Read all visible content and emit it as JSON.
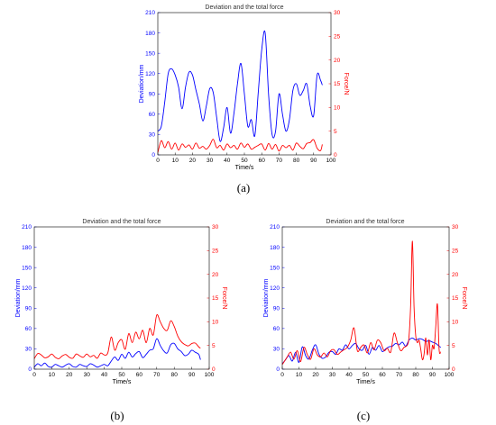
{
  "chart_data": [
    {
      "type": "line",
      "caption": "(a)",
      "title": "Deviation and the total force",
      "xlabel": "Time/s",
      "ylabel_left": "Deviation/mm",
      "ylabel_right": "Force/N",
      "xlim": [
        0,
        100
      ],
      "ylim_left": [
        0,
        210
      ],
      "ylim_right": [
        0,
        30
      ],
      "xticks": [
        0,
        10,
        20,
        30,
        40,
        50,
        60,
        70,
        80,
        90,
        100
      ],
      "yticks_left": [
        0,
        30,
        60,
        90,
        120,
        150,
        180,
        210
      ],
      "yticks_right": [
        0,
        5,
        10,
        15,
        20,
        25,
        30
      ],
      "colors": {
        "left": "#0000ff",
        "right": "#ff0000"
      },
      "series": [
        {
          "axis": "left",
          "x": [
            0,
            2,
            4,
            6,
            8,
            10,
            12,
            14,
            16,
            18,
            20,
            22,
            24,
            26,
            28,
            30,
            32,
            34,
            36,
            38,
            40,
            42,
            44,
            46,
            48,
            50,
            52,
            54,
            56,
            58,
            60,
            62,
            64,
            66,
            68,
            70,
            72,
            74,
            76,
            78,
            80,
            82,
            84,
            86,
            88,
            90,
            92,
            94,
            95
          ],
          "values": [
            35,
            42,
            78,
            120,
            127,
            118,
            100,
            68,
            100,
            122,
            118,
            96,
            75,
            50,
            72,
            98,
            92,
            55,
            20,
            40,
            70,
            32,
            62,
            105,
            135,
            90,
            42,
            52,
            28,
            92,
            155,
            180,
            88,
            30,
            35,
            90,
            60,
            35,
            52,
            95,
            105,
            88,
            95,
            105,
            72,
            58,
            118,
            110,
            103
          ]
        },
        {
          "axis": "right",
          "x": [
            0,
            2,
            4,
            6,
            8,
            10,
            12,
            14,
            16,
            18,
            20,
            22,
            24,
            26,
            28,
            30,
            32,
            34,
            36,
            38,
            40,
            42,
            44,
            46,
            48,
            50,
            52,
            54,
            56,
            58,
            60,
            62,
            64,
            66,
            68,
            70,
            72,
            74,
            76,
            78,
            80,
            82,
            84,
            86,
            88,
            90,
            92,
            94,
            95
          ],
          "values": [
            0.5,
            3.0,
            1.5,
            2.8,
            1.2,
            2.5,
            1.0,
            2.3,
            1.6,
            2.1,
            1.2,
            2.5,
            1.4,
            1.8,
            1.2,
            2.0,
            3.3,
            1.5,
            2.0,
            1.0,
            2.3,
            1.5,
            2.0,
            1.2,
            2.5,
            1.6,
            2.3,
            1.2,
            1.6,
            2.0,
            2.3,
            1.0,
            2.4,
            1.2,
            2.2,
            0.8,
            2.0,
            1.5,
            2.0,
            1.0,
            2.5,
            1.8,
            1.3,
            2.4,
            2.6,
            3.2,
            1.4,
            0.9,
            2.2
          ]
        }
      ]
    },
    {
      "type": "line",
      "caption": "(b)",
      "title": "Deviation and the total force",
      "xlabel": "Time/s",
      "ylabel_left": "Deviation/mm",
      "ylabel_right": "Force/N",
      "xlim": [
        0,
        100
      ],
      "ylim_left": [
        0,
        210
      ],
      "ylim_right": [
        0,
        30
      ],
      "xticks": [
        0,
        10,
        20,
        30,
        40,
        50,
        60,
        70,
        80,
        90,
        100
      ],
      "yticks_left": [
        0,
        30,
        60,
        90,
        120,
        150,
        180,
        210
      ],
      "yticks_right": [
        0,
        5,
        10,
        15,
        20,
        25,
        30
      ],
      "colors": {
        "left": "#0000ff",
        "right": "#ff0000"
      },
      "series": [
        {
          "axis": "left",
          "x": [
            0,
            2,
            4,
            6,
            8,
            10,
            12,
            14,
            16,
            18,
            20,
            22,
            24,
            26,
            28,
            30,
            32,
            34,
            36,
            38,
            40,
            42,
            44,
            46,
            48,
            50,
            52,
            54,
            56,
            58,
            60,
            62,
            64,
            66,
            68,
            70,
            72,
            74,
            76,
            78,
            80,
            82,
            84,
            86,
            88,
            90,
            92,
            94,
            95
          ],
          "values": [
            3,
            8,
            5,
            9,
            4,
            3,
            7,
            5,
            3,
            6,
            8,
            4,
            3,
            7,
            5,
            4,
            8,
            6,
            3,
            5,
            7,
            5,
            12,
            18,
            13,
            22,
            16,
            25,
            18,
            23,
            26,
            17,
            22,
            28,
            30,
            45,
            35,
            27,
            24,
            36,
            38,
            30,
            26,
            20,
            22,
            28,
            25,
            22,
            14
          ]
        },
        {
          "axis": "right",
          "x": [
            0,
            2,
            4,
            6,
            8,
            10,
            12,
            14,
            16,
            18,
            20,
            22,
            24,
            26,
            28,
            30,
            32,
            34,
            36,
            38,
            40,
            42,
            44,
            46,
            48,
            50,
            52,
            54,
            56,
            58,
            60,
            62,
            64,
            66,
            68,
            70,
            72,
            74,
            76,
            78,
            80,
            82,
            84,
            86,
            88,
            90,
            92,
            94,
            95
          ],
          "values": [
            2.2,
            3.3,
            3.0,
            2.4,
            2.6,
            3.2,
            2.5,
            2.2,
            2.8,
            3.1,
            2.5,
            2.3,
            3.2,
            2.8,
            2.5,
            3.2,
            2.6,
            2.9,
            2.3,
            3.4,
            3.0,
            3.4,
            6.8,
            4.0,
            5.6,
            6.2,
            4.2,
            7.5,
            5.6,
            7.8,
            6.4,
            8.2,
            5.6,
            8.6,
            7.2,
            11.4,
            10.0,
            8.6,
            8.2,
            10.2,
            9.0,
            7.0,
            5.8,
            5.2,
            4.9,
            5.4,
            5.5,
            4.7,
            4.4
          ]
        }
      ]
    },
    {
      "type": "line",
      "caption": "(c)",
      "title": "Deviation and the total force",
      "xlabel": "Time/s",
      "ylabel_left": "Deviation/mm",
      "ylabel_right": "Force/N",
      "xlim": [
        0,
        100
      ],
      "ylim_left": [
        0,
        210
      ],
      "ylim_right": [
        0,
        30
      ],
      "xticks": [
        0,
        10,
        20,
        30,
        40,
        50,
        60,
        70,
        80,
        90,
        100
      ],
      "yticks_left": [
        0,
        30,
        60,
        90,
        120,
        150,
        180,
        210
      ],
      "yticks_right": [
        0,
        5,
        10,
        15,
        20,
        25,
        30
      ],
      "colors": {
        "left": "#0000ff",
        "right": "#ff0000"
      },
      "series": [
        {
          "axis": "left",
          "x": [
            0,
            2,
            4,
            6,
            8,
            10,
            12,
            14,
            16,
            18,
            20,
            22,
            24,
            26,
            28,
            30,
            32,
            34,
            36,
            38,
            40,
            42,
            44,
            46,
            48,
            50,
            52,
            54,
            56,
            58,
            60,
            62,
            64,
            66,
            68,
            70,
            72,
            74,
            76,
            78,
            80,
            82,
            84,
            86,
            88,
            90,
            92,
            94,
            95
          ],
          "values": [
            8,
            14,
            20,
            12,
            25,
            10,
            33,
            20,
            15,
            28,
            36,
            22,
            16,
            18,
            25,
            26,
            22,
            30,
            28,
            36,
            30,
            35,
            38,
            30,
            28,
            35,
            22,
            32,
            28,
            35,
            26,
            30,
            33,
            34,
            38,
            36,
            40,
            34,
            43,
            46,
            43,
            45,
            44,
            41,
            42,
            40,
            38,
            34,
            32
          ]
        },
        {
          "axis": "right",
          "x": [
            0,
            1,
            3,
            5,
            7,
            9,
            11,
            13,
            15,
            17,
            19,
            21,
            23,
            25,
            27,
            29,
            31,
            33,
            35,
            37,
            39,
            41,
            43,
            45,
            47,
            49,
            51,
            53,
            55,
            57,
            59,
            61,
            63,
            65,
            67,
            69,
            71,
            73,
            75,
            76,
            77,
            78,
            79,
            80,
            81,
            82,
            83,
            84,
            85,
            86,
            87,
            88,
            89,
            90,
            91,
            92,
            93,
            94,
            95
          ],
          "values": [
            1,
            1.5,
            2.6,
            3.6,
            2.1,
            3.9,
            1.6,
            4.6,
            3.1,
            2.1,
            4.3,
            3.0,
            2.6,
            3.4,
            2.6,
            3.9,
            4.1,
            3.1,
            3.6,
            4.1,
            4.6,
            6.1,
            8.7,
            3.9,
            4.6,
            5.1,
            3.4,
            5.6,
            4.1,
            6.1,
            5.6,
            3.9,
            4.4,
            3.6,
            7.6,
            5.6,
            3.9,
            4.6,
            5.1,
            7.0,
            14.0,
            27.0,
            13.0,
            7.0,
            5.6,
            6.1,
            4.2,
            2.0,
            3.2,
            6.6,
            3.0,
            6.2,
            2.0,
            5.0,
            4.4,
            9.0,
            13.7,
            4.2,
            3.6
          ]
        }
      ]
    }
  ]
}
